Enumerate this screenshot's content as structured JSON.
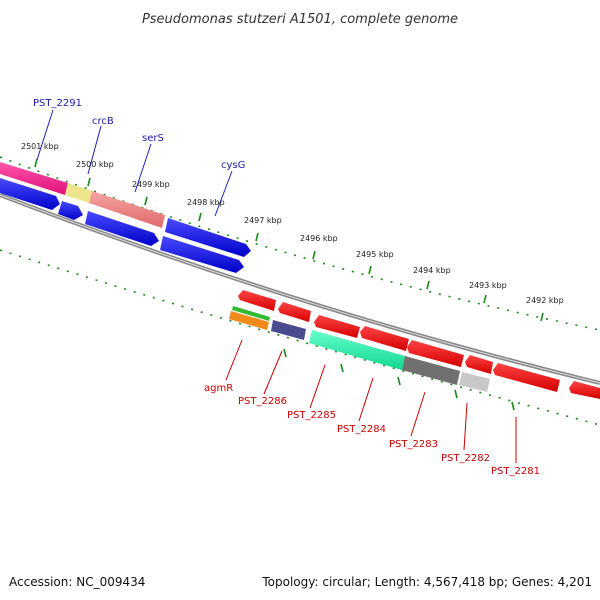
{
  "title": "Pseudomonas stutzeri A1501, complete genome",
  "footer": {
    "accession": "Accession: NC_009434",
    "topology": "Topology: circular; Length: 4,567,418 bp; Genes: 4,201"
  },
  "ruler_labels": [
    "2501 kbp",
    "2500 kbp",
    "2499 kbp",
    "2498 kbp",
    "2497 kbp",
    "2496 kbp",
    "2495 kbp",
    "2494 kbp",
    "2493 kbp",
    "2492 kbp"
  ],
  "top_genes": [
    "PST_2291",
    "crcB",
    "serS",
    "cysG"
  ],
  "bottom_genes": [
    "agmR",
    "PST_2286",
    "PST_2285",
    "PST_2284",
    "PST_2283",
    "PST_2282",
    "PST_2281"
  ],
  "colors": {
    "forward_cds": "#0000ee",
    "reverse_cds": "#ee0000",
    "tick": "#1a8a1a",
    "backbone": "#777777"
  }
}
